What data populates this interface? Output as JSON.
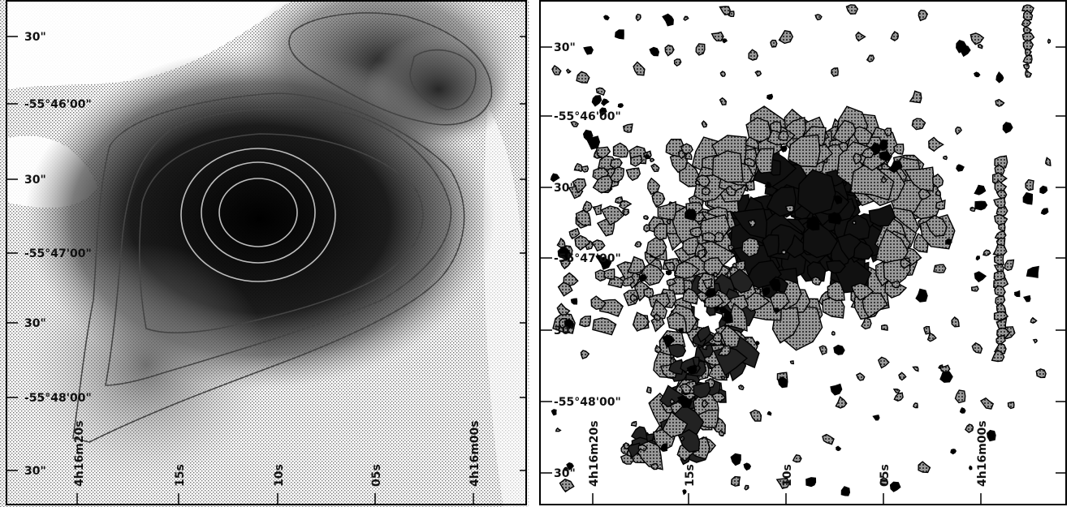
{
  "left_panel": {
    "dec_labels": [
      "30\"",
      "-55°46'00\"",
      "30\"",
      "-55°47'00\"",
      "30\"",
      "-55°48'00\"",
      "30\""
    ],
    "ra_labels": [
      "4h16m20s",
      "15s",
      "10s",
      "05s",
      "4h16m00s"
    ]
  },
  "right_panel": {
    "dec_labels": [
      "30\"",
      "-55°46'00\"",
      "30\"",
      "-55°47'00\"",
      "30\"",
      "-55°48'00\"",
      "30\""
    ],
    "ra_labels": [
      "4h16m20s",
      "15s",
      "10s",
      "05s",
      "4h16m00s"
    ]
  },
  "colors": {
    "background": "#ffffff",
    "ink": "#111111",
    "emission_core": "#0a0a0a",
    "emission_halo": "#8a8a8a"
  }
}
